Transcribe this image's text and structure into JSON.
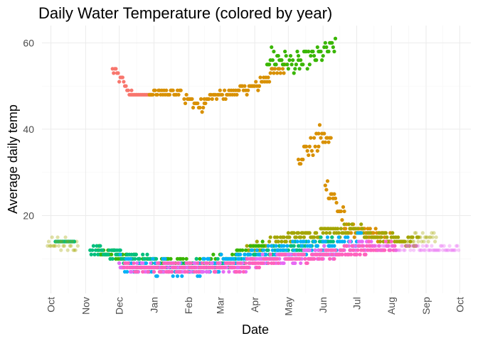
{
  "chart_data": {
    "type": "scatter",
    "title": "Daily Water Temperature (colored by year)",
    "xlabel": "Date",
    "ylabel": "Average daily temp",
    "x_ticks": [
      "Oct",
      "Nov",
      "Dec",
      "Jan",
      "Feb",
      "Mar",
      "Apr",
      "May",
      "Jun",
      "Jul",
      "Aug",
      "Sep",
      "Oct"
    ],
    "x_range": [
      "2021-09-23",
      "2022-10-11"
    ],
    "y_ticks": [
      20,
      40,
      60
    ],
    "ylim": [
      2,
      64
    ],
    "grid": true,
    "legend": "none",
    "series": [
      {
        "color": "#F8766D",
        "segments": [
          {
            "x0": "2021-11-25",
            "x1": "2021-12-12",
            "y0": 54,
            "y1": 48,
            "noise": 1.2
          },
          {
            "x0": "2021-12-12",
            "x1": "2021-12-30",
            "y0": 48,
            "y1": 48,
            "noise": 0.3
          }
        ]
      },
      {
        "color": "#D89000",
        "segments": [
          {
            "x0": "2021-12-28",
            "x1": "2022-01-25",
            "y0": 48,
            "y1": 49,
            "noise": 0.8
          },
          {
            "x0": "2022-01-28",
            "x1": "2022-02-15",
            "y0": 47,
            "y1": 45,
            "noise": 1.4
          },
          {
            "x0": "2022-02-15",
            "x1": "2022-04-05",
            "y0": 47,
            "y1": 50,
            "noise": 0.9
          },
          {
            "x0": "2022-04-05",
            "x1": "2022-04-28",
            "y0": 51,
            "y1": 55,
            "noise": 1.5
          },
          {
            "x0": "2022-05-10",
            "x1": "2022-05-28",
            "y0": 34,
            "y1": 37,
            "noise": 2.5
          },
          {
            "x0": "2022-05-28",
            "x1": "2022-06-08",
            "y0": 39,
            "y1": 37,
            "noise": 2.0
          },
          {
            "x0": "2022-06-03",
            "x1": "2022-06-20",
            "y0": 28,
            "y1": 19,
            "noise": 2.5
          },
          {
            "x0": "2022-06-20",
            "x1": "2022-07-31",
            "y0": 17,
            "y1": 15,
            "noise": 1.2
          }
        ]
      },
      {
        "color": "#A3A500",
        "segments": [
          {
            "x0": "2022-03-25",
            "x1": "2022-05-01",
            "y0": 12,
            "y1": 15,
            "noise": 1.2
          },
          {
            "x0": "2022-05-01",
            "x1": "2022-07-05",
            "y0": 15,
            "y1": 17,
            "noise": 1.0
          },
          {
            "x0": "2022-07-05",
            "x1": "2022-08-25",
            "y0": 16,
            "y1": 14,
            "noise": 1.2
          }
        ]
      },
      {
        "color": "#39B600",
        "segments": [
          {
            "x0": "2021-11-12",
            "x1": "2021-12-20",
            "y0": 12,
            "y1": 9,
            "noise": 1.3
          },
          {
            "x0": "2021-12-20",
            "x1": "2022-02-20",
            "y0": 9,
            "y1": 9,
            "noise": 1.5
          },
          {
            "x0": "2022-02-20",
            "x1": "2022-04-10",
            "y0": 9,
            "y1": 12,
            "noise": 1.8
          },
          {
            "x0": "2022-04-12",
            "x1": "2022-05-10",
            "y0": 57,
            "y1": 55,
            "noise": 2.5
          },
          {
            "x0": "2022-05-10",
            "x1": "2022-06-12",
            "y0": 55,
            "y1": 59,
            "noise": 2.0
          }
        ]
      },
      {
        "color": "#00BF7D",
        "segments": [
          {
            "x0": "2021-10-05",
            "x1": "2021-10-22",
            "y0": 14,
            "y1": 14,
            "noise": 0.3
          },
          {
            "x0": "2021-11-05",
            "x1": "2022-01-05",
            "y0": 12,
            "y1": 9,
            "noise": 1.4
          },
          {
            "x0": "2022-01-05",
            "x1": "2022-03-15",
            "y0": 8,
            "y1": 9,
            "noise": 1.2
          },
          {
            "x0": "2022-03-15",
            "x1": "2022-06-10",
            "y0": 10,
            "y1": 14,
            "noise": 1.3
          }
        ]
      },
      {
        "color": "#00B0F6",
        "segments": [
          {
            "x0": "2021-12-01",
            "x1": "2022-02-10",
            "y0": 9,
            "y1": 7,
            "noise": 1.8
          },
          {
            "x0": "2022-02-10",
            "x1": "2022-04-10",
            "y0": 8,
            "y1": 11,
            "noise": 2.0
          },
          {
            "x0": "2022-04-10",
            "x1": "2022-07-05",
            "y0": 11,
            "y1": 14,
            "noise": 2.2
          }
        ]
      },
      {
        "color": "#E76BF3",
        "segments": [
          {
            "x0": "2021-12-01",
            "x1": "2022-03-25",
            "y0": 8,
            "y1": 8,
            "noise": 1.0
          },
          {
            "x0": "2022-03-25",
            "x1": "2022-07-15",
            "y0": 9,
            "y1": 13,
            "noise": 1.3
          }
        ]
      },
      {
        "color": "#FF62BC",
        "segments": [
          {
            "x0": "2021-12-05",
            "x1": "2022-03-25",
            "y0": 8,
            "y1": 8,
            "noise": 1.0
          },
          {
            "x0": "2022-03-25",
            "x1": "2022-08-05",
            "y0": 9,
            "y1": 13,
            "noise": 1.3
          }
        ]
      },
      {
        "color": "#E76BF3",
        "faded": true,
        "segments": [
          {
            "x0": "2022-07-15",
            "x1": "2022-09-30",
            "y0": 13,
            "y1": 12,
            "noise": 0.6
          }
        ]
      },
      {
        "color": "#A3A500",
        "faded": true,
        "segments": [
          {
            "x0": "2021-09-28",
            "x1": "2021-10-25",
            "y0": 14,
            "y1": 13,
            "noise": 1.3
          },
          {
            "x0": "2022-08-15",
            "x1": "2022-09-10",
            "y0": 15,
            "y1": 15,
            "noise": 1.0
          }
        ]
      }
    ]
  }
}
